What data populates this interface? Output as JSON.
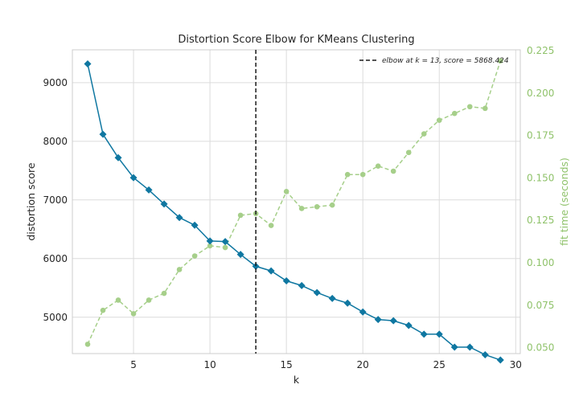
{
  "chart_data": {
    "type": "line",
    "title": "Distortion Score Elbow for KMeans Clustering",
    "xlabel": "k",
    "ylabel": "distortion score",
    "y2label": "fit time (seconds)",
    "xlim": [
      1,
      30.3
    ],
    "ylim": [
      4380,
      9560
    ],
    "y2lim": [
      0.0465,
      0.2255
    ],
    "xticks": [
      5,
      10,
      15,
      20,
      25,
      30
    ],
    "yticks": [
      5000,
      6000,
      7000,
      8000,
      9000
    ],
    "y2ticks": [
      "0.050",
      "0.075",
      "0.100",
      "0.125",
      "0.150",
      "0.175",
      "0.200",
      "0.225"
    ],
    "grid": true,
    "x": [
      2,
      3,
      4,
      5,
      6,
      7,
      8,
      9,
      10,
      11,
      12,
      13,
      14,
      15,
      16,
      17,
      18,
      19,
      20,
      21,
      22,
      23,
      24,
      25,
      26,
      27,
      28,
      29
    ],
    "series": [
      {
        "axis": "left",
        "values": [
          9320,
          8120,
          7720,
          7380,
          7170,
          6930,
          6700,
          6570,
          6300,
          6290,
          6070,
          5868.424,
          5790,
          5620,
          5540,
          5420,
          5320,
          5240,
          5090,
          4960,
          4940,
          4860,
          4710,
          4710,
          4490,
          4490,
          4360,
          4270
        ],
        "color": "#0f77a1",
        "marker": "diamond",
        "linestyle": "solid"
      },
      {
        "axis": "right",
        "values": [
          0.052,
          0.072,
          0.078,
          0.07,
          0.078,
          0.082,
          0.096,
          0.104,
          0.11,
          0.109,
          0.128,
          0.129,
          0.122,
          0.142,
          0.132,
          0.133,
          0.134,
          0.152,
          0.152,
          0.157,
          0.154,
          0.165,
          0.176,
          0.184,
          0.188,
          0.192,
          0.191,
          0.219
        ],
        "color": "#a6cf8a",
        "marker": "circle",
        "linestyle": "dashed"
      }
    ],
    "elbow": {
      "k": 13,
      "score": 5868.424,
      "legend_label": "elbow at k = 13, score = 5868.424",
      "color": "#1a1a1a",
      "linestyle": "dashed"
    },
    "legend_placement": "top-right"
  }
}
